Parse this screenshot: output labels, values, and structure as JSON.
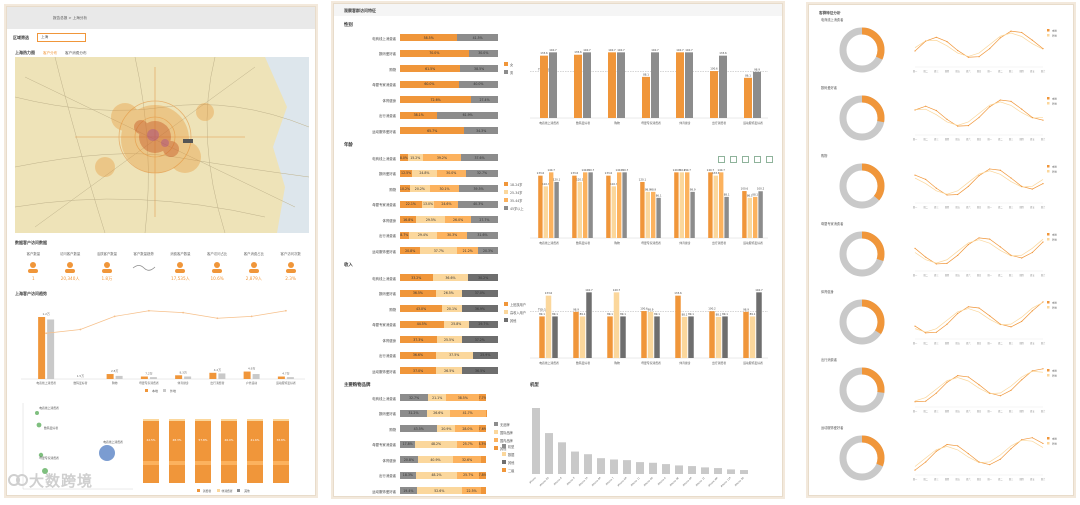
{
  "colors": {
    "orange": "#f0963a",
    "gray": "#8c8c8c",
    "lightgray": "#c9c9c9",
    "cream": "#fbd79c",
    "yellow": "#f7c255",
    "darkgray": "#6e6e6e",
    "lightorange": "#fcb25e"
  },
  "panel1": {
    "breadcrumb": "报告总报 > 上海分析",
    "filter_label": "区域筛选",
    "filter_value": "上海",
    "map_title": "上海热力图",
    "map_tabs": [
      "客户分布",
      "客户消费分布"
    ],
    "kpi_title": "数据客户访问数据",
    "kpis": [
      {
        "label": "客户数量",
        "value": "1",
        "icon": "chart-icon"
      },
      {
        "label": "访问客户数量",
        "value": "20,340人",
        "icon": "users-icon"
      },
      {
        "label": "活跃客户数量",
        "value": "1.8万",
        "icon": "person-icon"
      },
      {
        "label": "客户数量趋势",
        "value": "",
        "icon": "trend-icon"
      },
      {
        "label": "消费客户数量",
        "value": "17,535人",
        "icon": "group-icon"
      },
      {
        "label": "客户访问占比",
        "value": "10.6%",
        "icon": "grid-icon"
      },
      {
        "label": "客户消费占比",
        "value": "2,879人",
        "icon": "bar-icon"
      },
      {
        "label": "客户访问次数",
        "value": "2.3%",
        "icon": "stack-icon"
      }
    ],
    "combo_title": "上海客户访问趋势",
    "combo_legend": [
      "本地",
      "外地"
    ],
    "combo_categories": [
      "电商线上消费者",
      "数码爱好者",
      "购物",
      "母婴专家消费者",
      "体育健身",
      "出行消费者",
      "户外运动",
      "运动服饰爱好者"
    ],
    "combo_line": [
      2.2,
      2.4,
      3.1,
      3.4,
      3.3,
      3.0,
      3.1,
      3.4
    ],
    "combo_series": [
      [
        100,
        0,
        8,
        4,
        6,
        10,
        12,
        4
      ],
      [
        96,
        0,
        5,
        3,
        4,
        9,
        8,
        3
      ]
    ],
    "combo_labels": [
      "1.2万",
      "1.5万",
      "2.8万",
      "7,2万",
      "8,3万",
      "4.2万",
      "4.9万",
      "4.7万"
    ],
    "bubble_labels": [
      "电商线上消费者",
      "数码爱好者",
      "母婴专家消费者",
      "电商线上消费者"
    ],
    "bars_legend": [
      "消费者",
      "非消费者",
      "其他"
    ],
    "bars_stack_values": [
      "42.5%",
      "48.3%",
      "57.8%",
      "46.0%",
      "41.6%",
      "38.8%"
    ]
  },
  "panel2": {
    "title": "观察客群访问特征",
    "categories": [
      "电商线上消费者",
      "数码爱好者",
      "购物",
      "母婴专家消费者",
      "体育健身",
      "出行消费者",
      "运动服饰爱好者"
    ],
    "gender": {
      "title": "性别",
      "legend": [
        "女",
        "男"
      ],
      "stack": [
        [
          58.5,
          41.5
        ],
        [
          70.0,
          30.0
        ],
        [
          61.5,
          38.5
        ],
        [
          60.0,
          40.0
        ],
        [
          72.6,
          27.4
        ],
        [
          38.1,
          61.9
        ],
        [
          65.7,
          34.3
        ]
      ],
      "bar_values": [
        [
          133.6,
          140.7
        ],
        [
          135.6,
          140.7
        ],
        [
          140.7,
          140.7
        ],
        [
          88.1,
          140.7
        ],
        [
          140.7,
          140.7
        ],
        [
          100.6,
          133.6
        ],
        [
          86.1,
          98.9
        ]
      ],
      "ref_label": "TGI:100"
    },
    "age": {
      "title": "年龄",
      "legend": [
        "18-24岁",
        "25-34岁",
        "35-44岁",
        "45岁以上"
      ],
      "stack": [
        [
          8.0,
          15.2,
          39.2,
          37.6
        ],
        [
          12.5,
          24.8,
          30.0,
          32.7
        ],
        [
          10.2,
          20.2,
          30.1,
          39.5
        ],
        [
          22.1,
          13.0,
          24.6,
          40.3
        ],
        [
          16.8,
          29.5,
          26.0,
          27.7
        ],
        [
          8.7,
          29.4,
          30.3,
          31.6
        ],
        [
          20.8,
          37.7,
          21.2,
          20.3
        ]
      ],
      "bar_values": [
        [
          133.6,
          110.7,
          140.7,
          120.1
        ],
        [
          133.6,
          120.1,
          140.7,
          140.7
        ],
        [
          133.6,
          110.7,
          140.7,
          140.7
        ],
        [
          120.1,
          98.9,
          98.9,
          86.1
        ],
        [
          140.7,
          140.7,
          140.7,
          98.9
        ],
        [
          140.7,
          133.6,
          140.7,
          88.1
        ],
        [
          100.6,
          86.1,
          88.1,
          100.2
        ]
      ]
    },
    "income": {
      "title": "收入",
      "legend": [
        "上班族用户",
        "高收入用户",
        "其他"
      ],
      "stack": [
        [
          33.2,
          36.6,
          30.2
        ],
        [
          36.5,
          26.5,
          37.0
        ],
        [
          43.0,
          20.1,
          36.9
        ],
        [
          44.5,
          25.8,
          29.7
        ],
        [
          37.3,
          25.5,
          37.2
        ],
        [
          36.6,
          37.5,
          25.9
        ],
        [
          37.0,
          26.5,
          36.5
        ]
      ],
      "bar_values": [
        [
          89.1,
          133.6,
          89.1
        ],
        [
          98.9,
          89.1,
          140.7
        ],
        [
          89.1,
          140.7,
          89.1
        ],
        [
          100.6,
          98.9,
          89.1
        ],
        [
          133.6,
          88.1,
          89.1
        ],
        [
          100.2,
          88.1,
          89.1
        ],
        [
          98.9,
          89.1,
          140.7
        ]
      ],
      "ref_label": "TGI:100"
    },
    "brand": {
      "title": "主要购物品牌",
      "legend": [
        "无品牌",
        "国际品牌",
        "国内品牌",
        "其他"
      ],
      "stack": [
        [
          32.7,
          21.1,
          38.5,
          7.7
        ],
        [
          31.2,
          26.6,
          41.7,
          0.5
        ],
        [
          43.5,
          20.9,
          28.0,
          7.6
        ],
        [
          17.8,
          48.2,
          25.7,
          8.3
        ],
        [
          20.8,
          40.9,
          32.6,
          5.7
        ],
        [
          18.3,
          48.2,
          25.7,
          7.8
        ],
        [
          19.4,
          52.6,
          22.5,
          5.5
        ]
      ]
    },
    "model": {
      "title": "机型",
      "categories": [
        "iPhone",
        "iPhone XS",
        "iPhone 8",
        "iPhone X",
        "iPhone 7P",
        "iPhone 8P",
        "iPhone 7",
        "iPhone XR",
        "iPhone 11",
        "iPhone 6S",
        "iPhone 6",
        "iPhone SE",
        "iPhone 6P",
        "iPhone 12",
        "iPhone XM",
        "iPhone 11P",
        "iPhone 5S"
      ],
      "values": [
        100,
        62,
        48,
        34,
        30,
        24,
        22,
        21,
        18,
        17,
        15,
        13,
        12,
        10,
        9,
        7,
        6
      ],
      "legend": [
        "机型",
        "数据",
        "其他",
        "二级"
      ]
    }
  },
  "panel3": {
    "title": "客群特征分析",
    "rows": [
      {
        "label": "电商线上消费者",
        "pct": 0.32
      },
      {
        "label": "数码爱好者",
        "pct": 0.28
      },
      {
        "label": "购物",
        "pct": 0.36
      },
      {
        "label": "母婴专家消费者",
        "pct": 0.3
      },
      {
        "label": "体育健身",
        "pct": 0.34
      },
      {
        "label": "出行消费者",
        "pct": 0.27
      },
      {
        "label": "运动服饰爱好者",
        "pct": 0.31
      }
    ],
    "legend": [
      "本地",
      "外地"
    ],
    "x_ticks": [
      "周一",
      "周二",
      "周三",
      "周四",
      "周五",
      "周六",
      "周日",
      "周一",
      "周二",
      "周三",
      "周四",
      "周五",
      "周六"
    ]
  },
  "watermark": "大数跨境"
}
